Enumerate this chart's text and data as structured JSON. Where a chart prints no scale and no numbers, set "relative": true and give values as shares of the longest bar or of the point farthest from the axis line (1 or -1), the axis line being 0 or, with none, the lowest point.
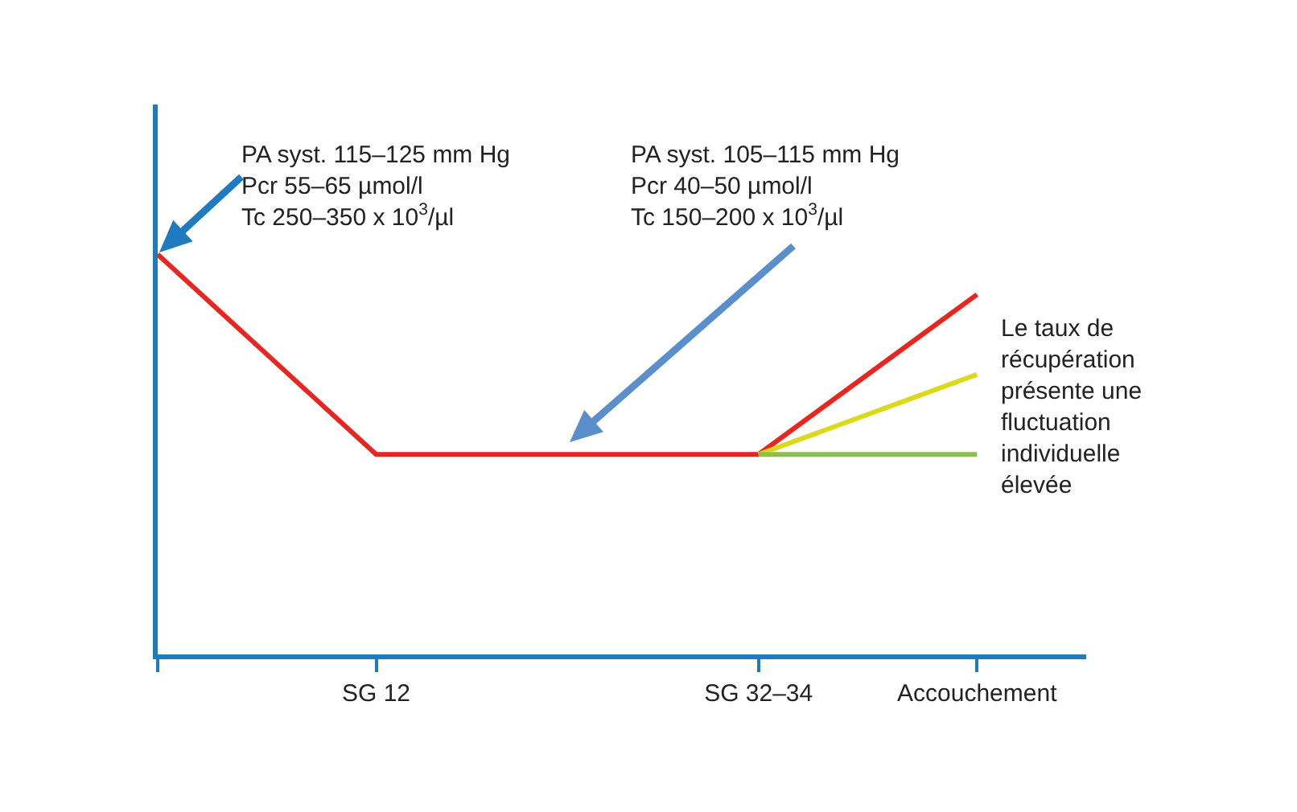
{
  "chart_data": {
    "type": "line",
    "relative": true,
    "tick_labels": "x",
    "categories": [
      null,
      null,
      null,
      null,
      "SG 12",
      null,
      null,
      null,
      null,
      null,
      null,
      "SG 32–34",
      null,
      null,
      null,
      "Accouchement",
      null,
      null
    ],
    "series": [
      {
        "color": "#e8251f",
        "values": [
          1,
          0.875,
          0.75,
          0.625,
          0.5,
          0.5,
          0.5,
          0.5,
          0.5,
          0.5,
          0.5,
          0.5,
          0.6,
          0.7,
          0.8,
          0.9,
          null,
          null
        ]
      },
      {
        "color": "#dcd81a",
        "values": [
          null,
          null,
          null,
          null,
          null,
          null,
          null,
          null,
          null,
          null,
          null,
          0.5,
          0.55,
          0.6,
          0.65,
          0.7,
          null,
          null
        ]
      },
      {
        "color": "#8dc04a",
        "values": [
          null,
          null,
          null,
          null,
          null,
          null,
          null,
          null,
          null,
          null,
          null,
          0.5,
          0.5,
          0.5,
          0.5,
          0.5,
          null,
          null
        ]
      }
    ],
    "annotations": [
      "PA syst. 115–125 mm Hg\nPcr 55–65 µmol/l\nTc 250–350 x 10$^{3}$/µl",
      "PA syst. 105–115 mm Hg\nPcr 40–50 µmol/l\nTc 150–200 x 10$^{3}$/µl",
      "Le taux de\nrécupération\nprésente une\nfluctuation\nindividuelle\nélevée"
    ]
  }
}
